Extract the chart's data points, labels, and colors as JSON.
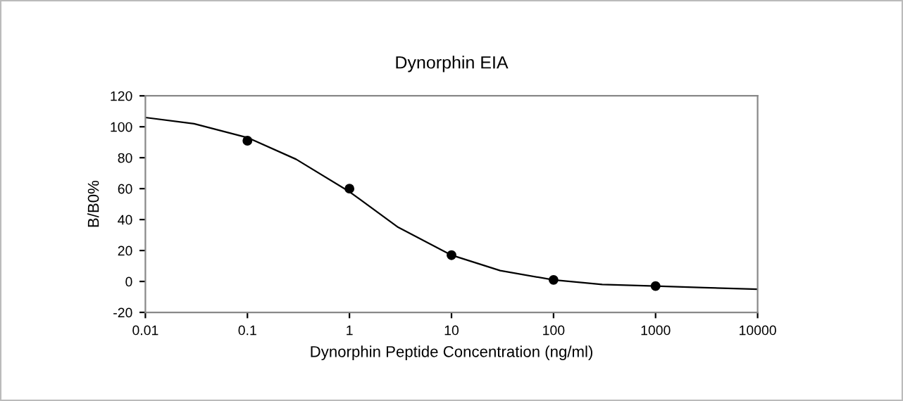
{
  "chart_data": {
    "type": "scatter",
    "title": "Dynorphin EIA",
    "xlabel": "Dynorphin Peptide Concentration (ng/ml)",
    "ylabel": "B/B0%",
    "log": "x",
    "xlim": [
      0.01,
      10000
    ],
    "xticks": [
      {
        "value": 0.01,
        "label": "0.01"
      },
      {
        "value": 0.1,
        "label": "0.1"
      },
      1,
      10,
      100,
      1000,
      10000
    ],
    "ylim": [
      -20,
      120
    ],
    "yticks": [
      -20,
      0,
      20,
      40,
      60,
      80,
      100,
      120
    ],
    "marker": "circle",
    "series": [
      {
        "color": "#000000",
        "x": [
          0.1,
          1,
          10,
          100,
          1000
        ],
        "values": [
          91,
          60,
          17,
          1,
          -3
        ]
      },
      {
        "type": "line",
        "color": "#000000",
        "marker": "none",
        "x": [
          0.01,
          0.03,
          0.1,
          0.3,
          1,
          3,
          10,
          30,
          100,
          300,
          1000,
          3000,
          10000
        ],
        "values": [
          106,
          102,
          93,
          79,
          58,
          35,
          17,
          7,
          1,
          -2,
          -3,
          -4,
          -5
        ]
      }
    ]
  }
}
